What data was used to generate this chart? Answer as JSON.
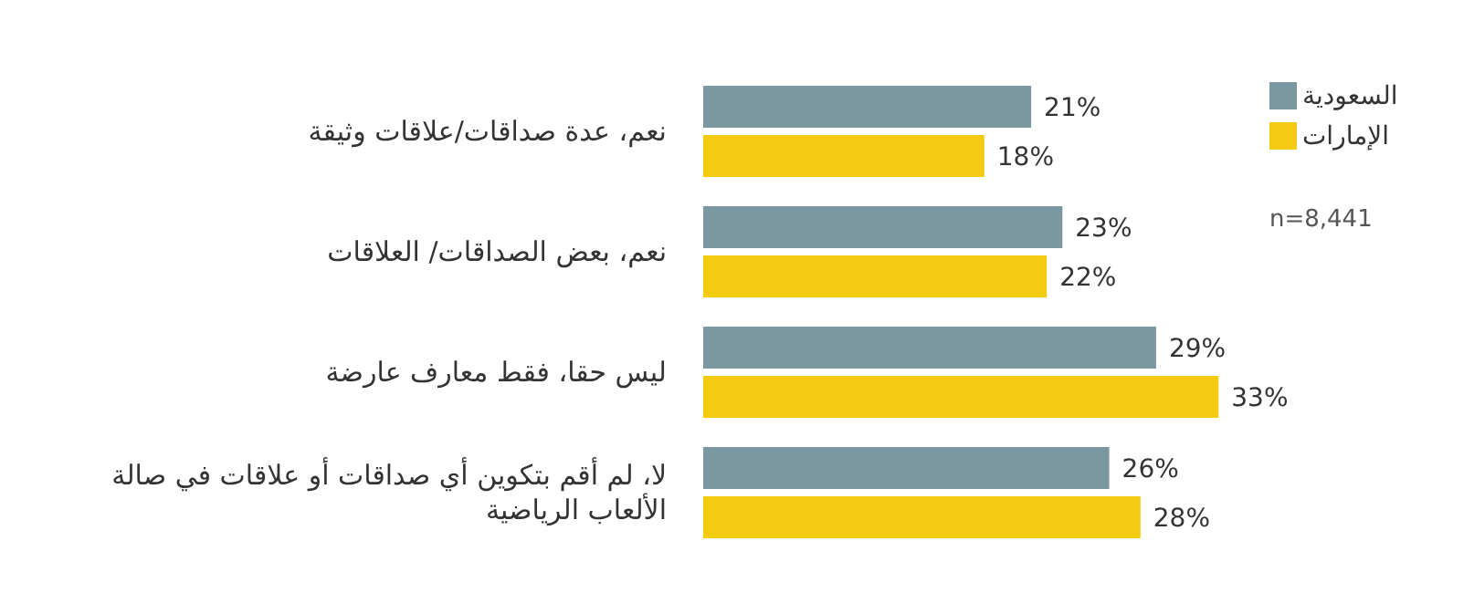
{
  "chart_data": {
    "type": "bar",
    "orientation": "horizontal",
    "categories": [
      "نعم، عدة صداقات/علاقات وثيقة",
      "نعم، بعض الصداقات/ العلاقات",
      "ليس حقا، فقط معارف عارضة",
      "لا، لم أقم بتكوين أي صداقات أو علاقات في صالة الألعاب الرياضية"
    ],
    "series": [
      {
        "name": "السعودية",
        "color": "#7b97a0",
        "values": [
          21,
          23,
          29,
          26
        ],
        "value_labels": [
          "21%",
          "23%",
          "29%",
          "26%"
        ]
      },
      {
        "name": "الإمارات",
        "color": "#f4cb12",
        "values": [
          18,
          22,
          33,
          28
        ],
        "value_labels": [
          "18%",
          "22%",
          "33%",
          "28%"
        ]
      }
    ],
    "legend": "top right",
    "tick_labels": "y",
    "annotations": [
      "n=8,441"
    ]
  }
}
